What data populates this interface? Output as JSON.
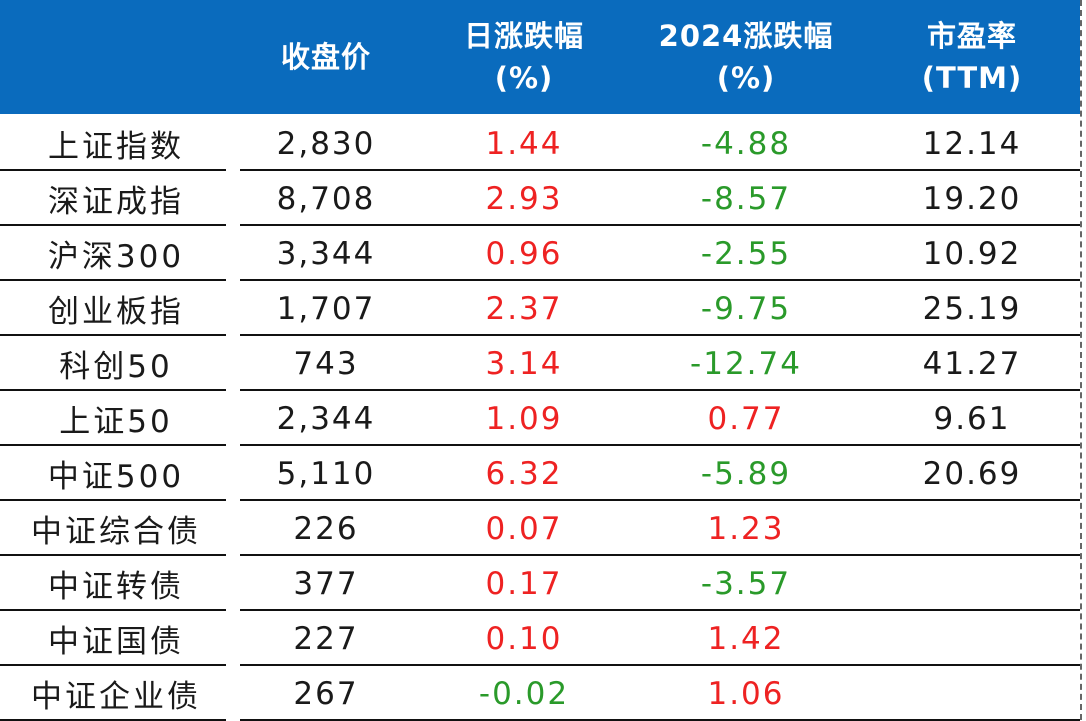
{
  "colors": {
    "header_bg": "#0a6bbd",
    "up": "#ee2222",
    "down": "#2a9a2a"
  },
  "header": {
    "close": "收盘价",
    "daily_1": "日涨跌幅",
    "daily_2": "(%)",
    "ytd_1": "2024涨跌幅",
    "ytd_2": "(%)",
    "pe_1": "市盈率",
    "pe_2": "(TTM)"
  },
  "rows": [
    {
      "name": "上证指数",
      "close": "2,830",
      "daily": "1.44",
      "ytd": "-4.88",
      "pe": "12.14"
    },
    {
      "name": "深证成指",
      "close": "8,708",
      "daily": "2.93",
      "ytd": "-8.57",
      "pe": "19.20"
    },
    {
      "name": "沪深300",
      "close": "3,344",
      "daily": "0.96",
      "ytd": "-2.55",
      "pe": "10.92"
    },
    {
      "name": "创业板指",
      "close": "1,707",
      "daily": "2.37",
      "ytd": "-9.75",
      "pe": "25.19"
    },
    {
      "name": "科创50",
      "close": "743",
      "daily": "3.14",
      "ytd": "-12.74",
      "pe": "41.27"
    },
    {
      "name": "上证50",
      "close": "2,344",
      "daily": "1.09",
      "ytd": "0.77",
      "pe": "9.61"
    },
    {
      "name": "中证500",
      "close": "5,110",
      "daily": "6.32",
      "ytd": "-5.89",
      "pe": "20.69"
    },
    {
      "name": "中证综合债",
      "close": "226",
      "daily": "0.07",
      "ytd": "1.23",
      "pe": ""
    },
    {
      "name": "中证转债",
      "close": "377",
      "daily": "0.17",
      "ytd": "-3.57",
      "pe": ""
    },
    {
      "name": "中证国债",
      "close": "227",
      "daily": "0.10",
      "ytd": "1.42",
      "pe": ""
    },
    {
      "name": "中证企业债",
      "close": "267",
      "daily": "-0.02",
      "ytd": "1.06",
      "pe": ""
    }
  ]
}
